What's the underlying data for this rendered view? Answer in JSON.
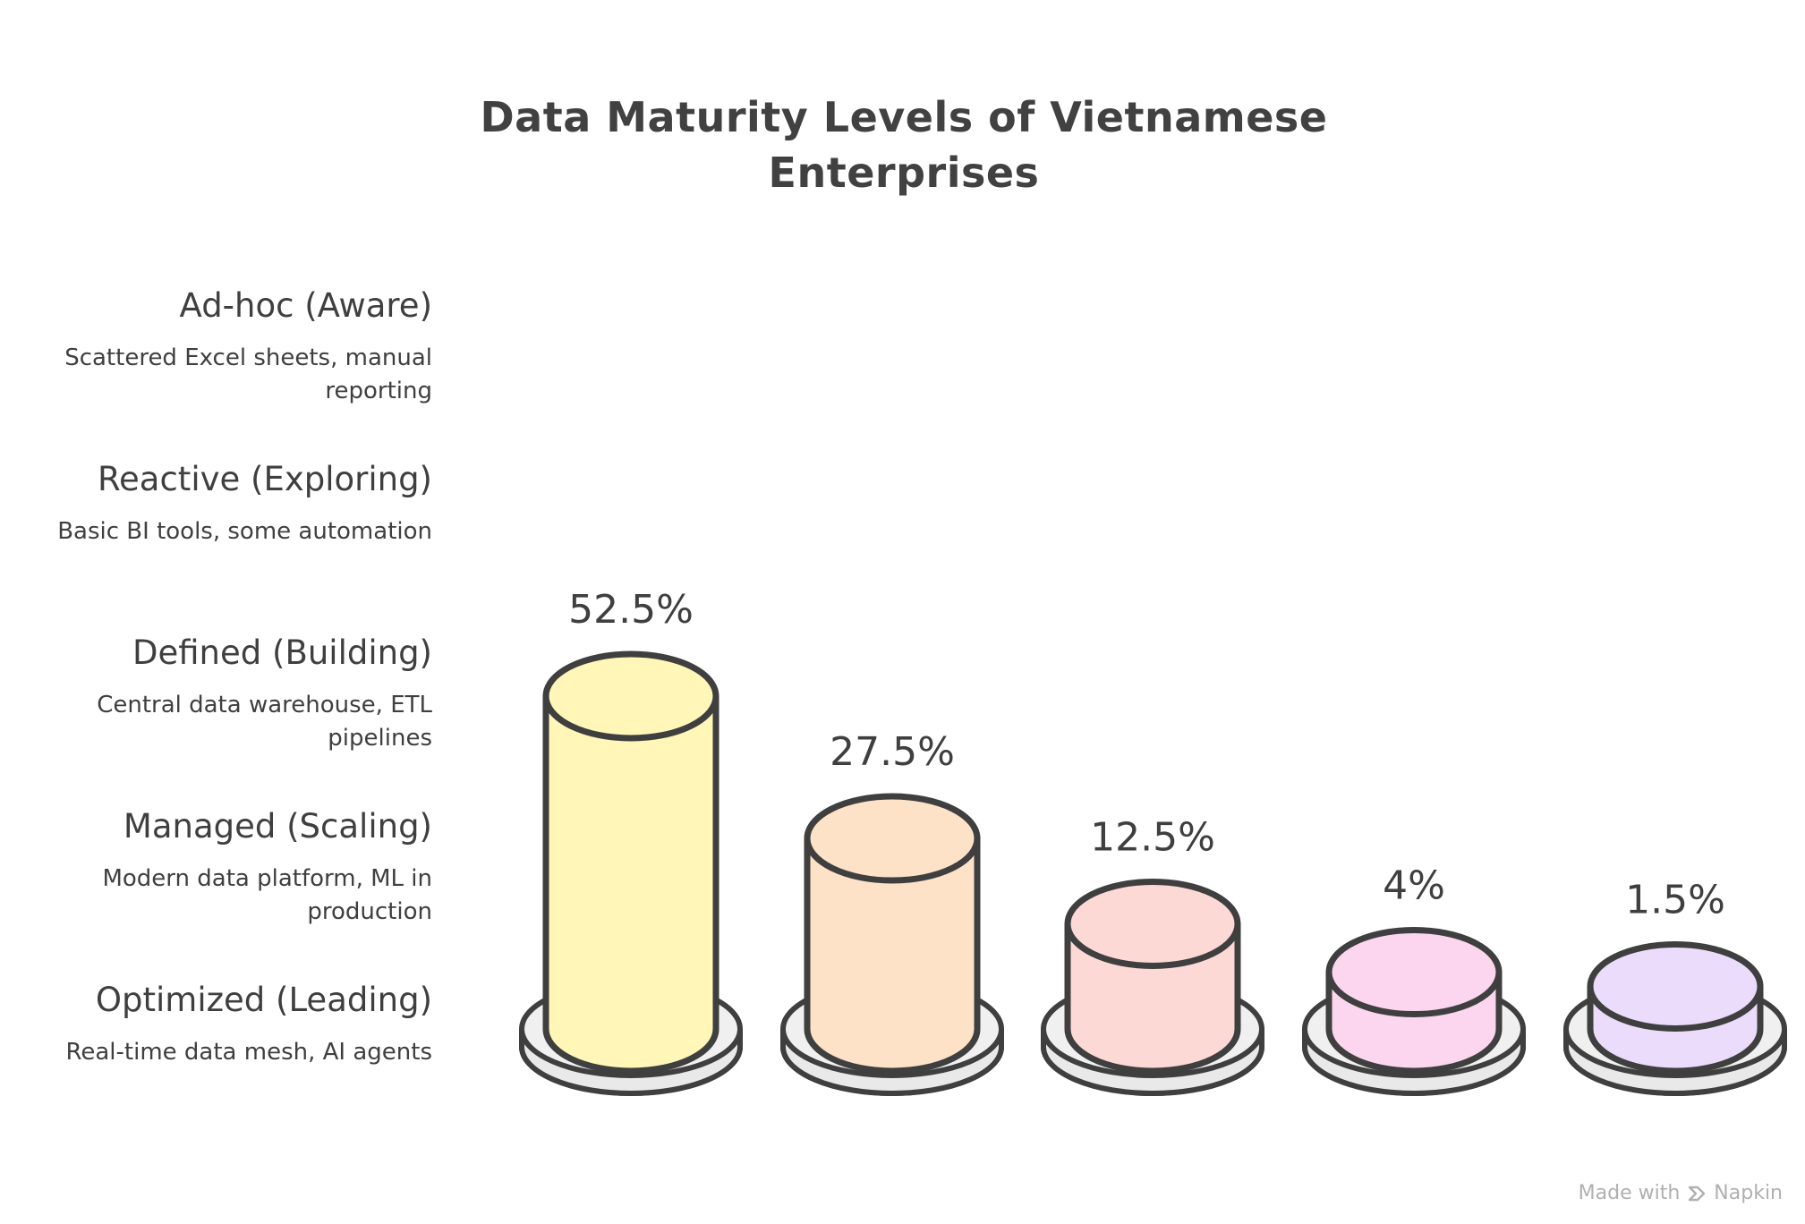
{
  "chart_data": {
    "type": "bar",
    "title": "Data Maturity Levels of Vietnamese Enterprises",
    "title_lines": [
      "Data Maturity Levels of Vietnamese",
      "Enterprises"
    ],
    "categories": [
      "Ad-hoc (Aware)",
      "Reactive (Exploring)",
      "Defined (Building)",
      "Managed (Scaling)",
      "Optimized (Leading)"
    ],
    "values": [
      52.5,
      27.5,
      12.5,
      4,
      1.5
    ],
    "value_labels": [
      "52.5%",
      "27.5%",
      "12.5%",
      "4%",
      "1.5%"
    ],
    "unit": "%",
    "ylim": [
      0,
      52.5
    ],
    "grid": false,
    "colors": [
      "#fff6b8",
      "#fde2c8",
      "#fdd9d6",
      "#fbd6ee",
      "#ecdcfb"
    ],
    "levels": [
      {
        "name": "Ad-hoc (Aware)",
        "description": "Scattered Excel sheets, manual reporting"
      },
      {
        "name": "Reactive (Exploring)",
        "description": "Basic BI tools, some automation"
      },
      {
        "name": "Defined (Building)",
        "description": "Central data warehouse, ETL pipelines"
      },
      {
        "name": "Managed (Scaling)",
        "description": "Modern data platform, ML in production"
      },
      {
        "name": "Optimized (Leading)",
        "description": "Real-time data mesh, AI agents"
      }
    ]
  },
  "watermark": {
    "prefix": "Made with",
    "brand": "Napkin",
    "icon": "napkin-logo-icon"
  },
  "colors": {
    "outline": "#3f3f3f",
    "base": "#e9e9e9",
    "text": "#3f3f3f",
    "watermark": "#b0b0b0"
  }
}
